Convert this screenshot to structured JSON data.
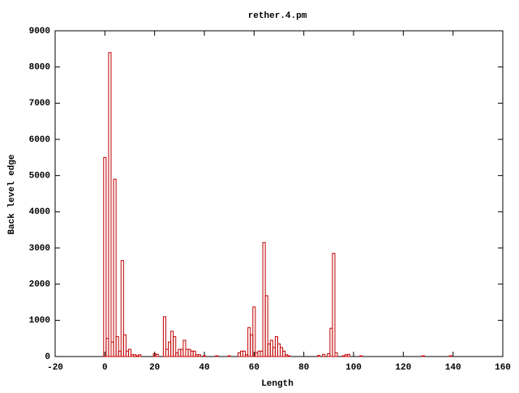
{
  "chart_data": {
    "type": "bar",
    "title": "rether.4.pm",
    "x_label": "Length",
    "y_label": "Back level edge",
    "x": [
      0,
      1,
      2,
      3,
      4,
      5,
      6,
      7,
      8,
      9,
      10,
      11,
      12,
      13,
      14,
      20,
      21,
      24,
      25,
      26,
      27,
      28,
      29,
      30,
      31,
      32,
      33,
      34,
      35,
      36,
      37,
      38,
      40,
      45,
      50,
      54,
      55,
      56,
      57,
      58,
      59,
      60,
      61,
      62,
      63,
      64,
      65,
      66,
      67,
      68,
      69,
      70,
      71,
      72,
      73,
      74,
      86,
      88,
      90,
      91,
      92,
      93,
      96,
      97,
      98,
      103,
      128,
      139
    ],
    "values": [
      5500,
      500,
      8400,
      400,
      4900,
      550,
      150,
      2650,
      600,
      150,
      200,
      50,
      50,
      20,
      50,
      80,
      60,
      1100,
      200,
      400,
      700,
      550,
      100,
      200,
      200,
      450,
      200,
      200,
      150,
      150,
      50,
      50,
      20,
      20,
      20,
      100,
      150,
      150,
      50,
      800,
      600,
      1370,
      100,
      150,
      150,
      3150,
      1680,
      350,
      450,
      250,
      550,
      350,
      250,
      150,
      50,
      20,
      30,
      60,
      80,
      780,
      2850,
      100,
      20,
      50,
      60,
      20,
      20,
      20
    ],
    "color": "#c00000",
    "bar_width": 1,
    "xlim": [
      -20,
      160
    ],
    "xticks": [
      -20,
      0,
      20,
      40,
      60,
      80,
      100,
      120,
      140,
      160
    ],
    "ylim": [
      0,
      9000
    ],
    "yticks": [
      0,
      1000,
      2000,
      3000,
      4000,
      5000,
      6000,
      7000,
      8000,
      9000
    ]
  }
}
